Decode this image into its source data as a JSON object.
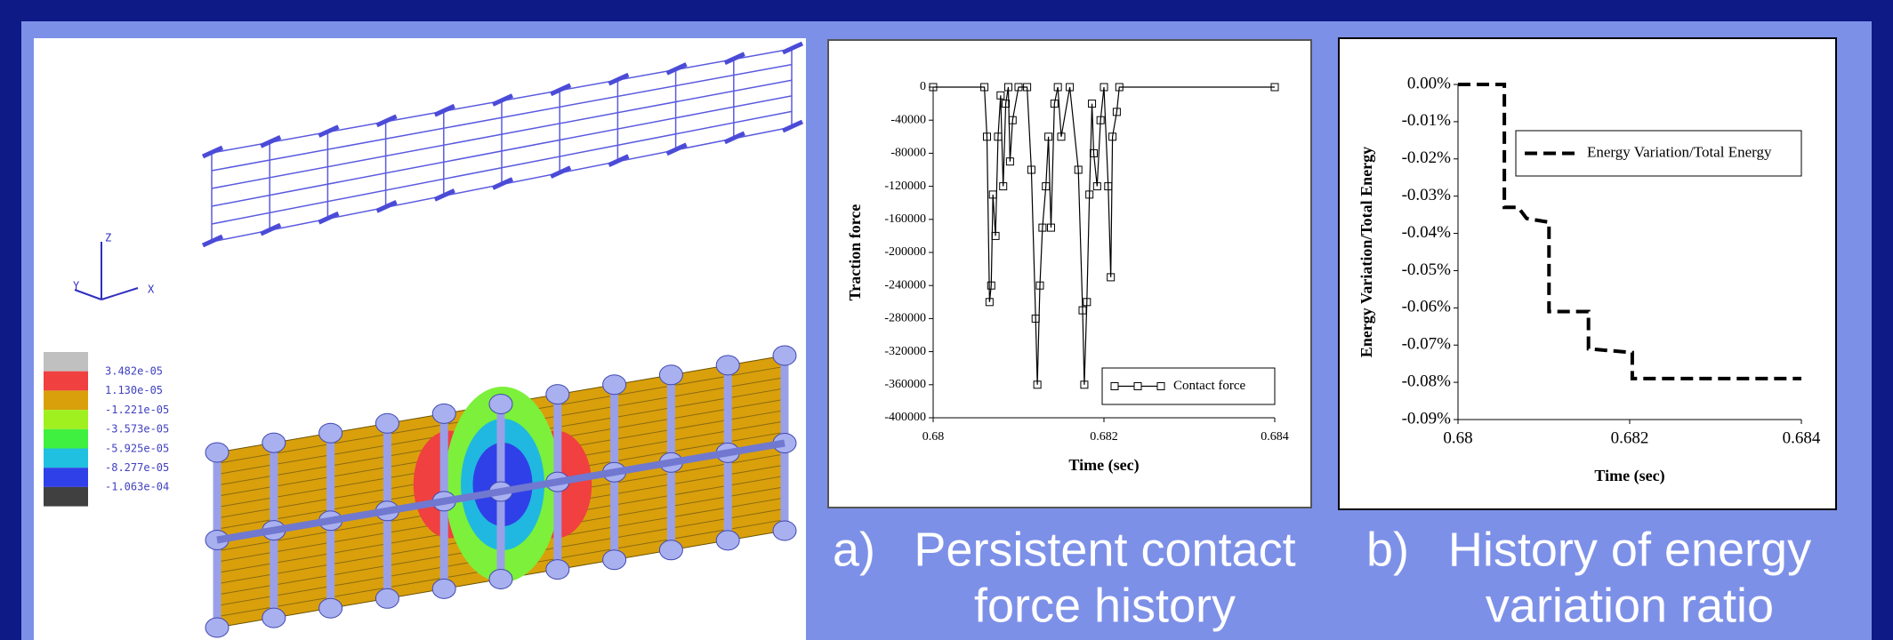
{
  "chart_data": [
    {
      "type": "line",
      "x_label": "Time (sec)",
      "y_label": "Traction force",
      "x": [
        0.68,
        0.6806,
        0.68063,
        0.68066,
        0.68068,
        0.6807,
        0.68073,
        0.68076,
        0.68079,
        0.68082,
        0.68085,
        0.68088,
        0.6809,
        0.68093,
        0.681,
        0.6811,
        0.68115,
        0.6812,
        0.68122,
        0.68125,
        0.68128,
        0.68132,
        0.68135,
        0.68138,
        0.68142,
        0.68146,
        0.6815,
        0.6816,
        0.6817,
        0.68175,
        0.68177,
        0.6818,
        0.68183,
        0.68186,
        0.68188,
        0.68192,
        0.68196,
        0.682,
        0.68205,
        0.68208,
        0.6821,
        0.68215,
        0.68218,
        0.684
      ],
      "series": [
        {
          "name": "Contact force",
          "color": "#000000",
          "marker": "square",
          "values": [
            0,
            0,
            -60000,
            -260000,
            -240000,
            -130000,
            -180000,
            -60000,
            -10000,
            -120000,
            -20000,
            0,
            -90000,
            -40000,
            0,
            0,
            -100000,
            -280000,
            -360000,
            -240000,
            -170000,
            -120000,
            -60000,
            -170000,
            -20000,
            0,
            -60000,
            0,
            -100000,
            -270000,
            -360000,
            -260000,
            -130000,
            -20000,
            -80000,
            -120000,
            -40000,
            0,
            -120000,
            -230000,
            -60000,
            -30000,
            0,
            0
          ]
        }
      ],
      "xlim": [
        0.68,
        0.684
      ],
      "xticks": [
        0.68,
        0.682,
        0.684
      ],
      "ylim": [
        -400000,
        0
      ],
      "yticks": [
        -400000,
        -360000,
        -320000,
        -280000,
        -240000,
        -200000,
        -160000,
        -120000,
        -80000,
        -40000,
        0
      ],
      "legend": "lower right"
    },
    {
      "type": "line",
      "x_label": "Time (sec)",
      "y_label": "Energy Variation/Total Energy",
      "x": [
        0.68,
        0.68054,
        0.68054,
        0.6807,
        0.6808,
        0.68106,
        0.68106,
        0.68152,
        0.68152,
        0.68203,
        0.68203,
        0.684
      ],
      "series": [
        {
          "name": "Energy Variation/Total Energy",
          "color": "#000000",
          "line_style": "dashed",
          "values": [
            0,
            0,
            -0.033,
            -0.033,
            -0.036,
            -0.037,
            -0.061,
            -0.061,
            -0.071,
            -0.072,
            -0.079,
            -0.079
          ]
        }
      ],
      "xlim": [
        0.68,
        0.684
      ],
      "xticks": [
        0.68,
        0.682,
        0.684
      ],
      "ylim": [
        -0.09,
        0
      ],
      "yticks": [
        {
          "value": -0.09,
          "label": "-0.09%"
        },
        {
          "value": -0.08,
          "label": "-0.08%"
        },
        {
          "value": -0.07,
          "label": "-0.07%"
        },
        {
          "value": -0.06,
          "label": "-0.06%"
        },
        {
          "value": -0.05,
          "label": "-0.05%"
        },
        {
          "value": -0.04,
          "label": "-0.04%"
        },
        {
          "value": -0.03,
          "label": "-0.03%"
        },
        {
          "value": -0.02,
          "label": "-0.02%"
        },
        {
          "value": -0.01,
          "label": "-0.01%"
        },
        {
          "value": 0,
          "label": "0.00%"
        }
      ],
      "legend": "upper right"
    }
  ],
  "captions": [
    {
      "letter": "a)",
      "lines": [
        "Persistent contact",
        "force history"
      ]
    },
    {
      "letter": "b)",
      "lines": [
        "History of energy",
        "variation ratio"
      ]
    }
  ],
  "contour_legend": {
    "labels": [
      "3.482e-05",
      "1.130e-05",
      "-1.221e-05",
      "-3.573e-05",
      "-5.925e-05",
      "-8.277e-05",
      "-1.063e-04"
    ]
  },
  "axes_triad": {
    "z": "Z",
    "y": "Y",
    "x": "X"
  }
}
